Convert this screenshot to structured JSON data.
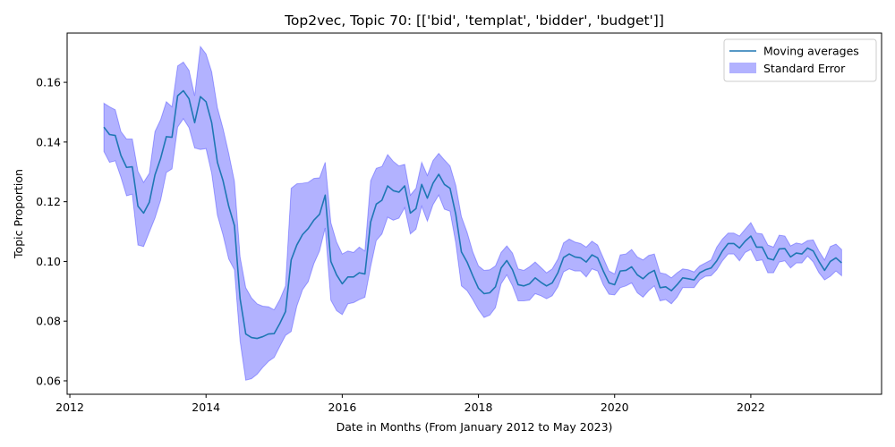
{
  "chart_data": {
    "type": "line",
    "title": "Top2vec, Topic 70: [['bid', 'templat', 'bidder', 'budget']]",
    "xlabel": "Date in Months (From January 2012 to May 2023)",
    "ylabel": "Topic Proportion",
    "xlim": [
      2011.96,
      2023.92
    ],
    "ylim": [
      0.0555,
      0.1765
    ],
    "grid": false,
    "legend_position": "upper-right",
    "x_ticks": [
      {
        "value": 2012,
        "label": "2012"
      },
      {
        "value": 2014,
        "label": "2014"
      },
      {
        "value": 2016,
        "label": "2016"
      },
      {
        "value": 2018,
        "label": "2018"
      },
      {
        "value": 2020,
        "label": "2020"
      },
      {
        "value": 2022,
        "label": "2022"
      }
    ],
    "y_ticks": [
      {
        "value": 0.06,
        "label": "0.06"
      },
      {
        "value": 0.08,
        "label": "0.08"
      },
      {
        "value": 0.1,
        "label": "0.10"
      },
      {
        "value": 0.12,
        "label": "0.12"
      },
      {
        "value": 0.14,
        "label": "0.14"
      },
      {
        "value": 0.16,
        "label": "0.16"
      }
    ],
    "series": [
      {
        "name": "Moving averages",
        "color": "#1f77b4",
        "x": [
          2012.5,
          2012.583,
          2012.667,
          2012.75,
          2012.833,
          2012.917,
          2013.0,
          2013.083,
          2013.167,
          2013.25,
          2013.333,
          2013.417,
          2013.5,
          2013.583,
          2013.667,
          2013.75,
          2013.833,
          2013.917,
          2014.0,
          2014.083,
          2014.167,
          2014.25,
          2014.333,
          2014.417,
          2014.5,
          2014.583,
          2014.667,
          2014.75,
          2014.833,
          2014.917,
          2015.0,
          2015.083,
          2015.167,
          2015.25,
          2015.333,
          2015.417,
          2015.5,
          2015.583,
          2015.667,
          2015.75,
          2015.833,
          2015.917,
          2016.0,
          2016.083,
          2016.167,
          2016.25,
          2016.333,
          2016.417,
          2016.5,
          2016.583,
          2016.667,
          2016.75,
          2016.833,
          2016.917,
          2017.0,
          2017.083,
          2017.167,
          2017.25,
          2017.333,
          2017.417,
          2017.5,
          2017.583,
          2017.667,
          2017.75,
          2017.833,
          2017.917,
          2018.0,
          2018.083,
          2018.167,
          2018.25,
          2018.333,
          2018.417,
          2018.5,
          2018.583,
          2018.667,
          2018.75,
          2018.833,
          2018.917,
          2019.0,
          2019.083,
          2019.167,
          2019.25,
          2019.333,
          2019.417,
          2019.5,
          2019.583,
          2019.667,
          2019.75,
          2019.833,
          2019.917,
          2020.0,
          2020.083,
          2020.167,
          2020.25,
          2020.333,
          2020.417,
          2020.5,
          2020.583,
          2020.667,
          2020.75,
          2020.833,
          2020.917,
          2021.0,
          2021.083,
          2021.167,
          2021.25,
          2021.333,
          2021.417,
          2021.5,
          2021.583,
          2021.667,
          2021.75,
          2021.833,
          2021.917,
          2022.0,
          2022.083,
          2022.167,
          2022.25,
          2022.333,
          2022.417,
          2022.5,
          2022.583,
          2022.667,
          2022.75,
          2022.833,
          2022.917,
          2023.0,
          2023.083,
          2023.167,
          2023.25,
          2023.333
        ],
        "values": [
          0.145,
          0.1425,
          0.1422,
          0.1355,
          0.1315,
          0.1317,
          0.1185,
          0.1162,
          0.1198,
          0.129,
          0.1345,
          0.1418,
          0.1416,
          0.1555,
          0.1572,
          0.1545,
          0.1465,
          0.1552,
          0.1535,
          0.1465,
          0.1332,
          0.127,
          0.1185,
          0.112,
          0.0875,
          0.0757,
          0.0745,
          0.0742,
          0.0748,
          0.0757,
          0.0758,
          0.0792,
          0.0832,
          0.1005,
          0.1055,
          0.109,
          0.111,
          0.1138,
          0.1158,
          0.1222,
          0.1,
          0.0955,
          0.0925,
          0.0948,
          0.0948,
          0.0962,
          0.0958,
          0.1132,
          0.1192,
          0.1205,
          0.1253,
          0.1237,
          0.1232,
          0.1253,
          0.1162,
          0.1177,
          0.1258,
          0.1212,
          0.1262,
          0.1292,
          0.1258,
          0.1245,
          0.1158,
          0.1032,
          0.0998,
          0.0952,
          0.091,
          0.0892,
          0.0895,
          0.0915,
          0.0978,
          0.1003,
          0.0972,
          0.0922,
          0.0918,
          0.0925,
          0.0945,
          0.093,
          0.0918,
          0.0928,
          0.0962,
          0.1013,
          0.1025,
          0.1015,
          0.1012,
          0.0998,
          0.1022,
          0.1012,
          0.0968,
          0.0928,
          0.0922,
          0.0968,
          0.097,
          0.0982,
          0.0955,
          0.0942,
          0.096,
          0.097,
          0.0912,
          0.0915,
          0.0902,
          0.0922,
          0.0945,
          0.0942,
          0.0938,
          0.0962,
          0.0972,
          0.0978,
          0.1002,
          0.1035,
          0.106,
          0.106,
          0.1045,
          0.1068,
          0.1085,
          0.1048,
          0.1048,
          0.101,
          0.1005,
          0.1042,
          0.1043,
          0.1015,
          0.1028,
          0.1025,
          0.1045,
          0.1035,
          0.1,
          0.097,
          0.1,
          0.1012,
          0.0995
        ]
      }
    ],
    "band": {
      "name": "Standard Error",
      "color": "#0000ff",
      "alpha": 0.3,
      "upper": [
        0.153,
        0.1518,
        0.1508,
        0.1435,
        0.141,
        0.141,
        0.1302,
        0.1265,
        0.1295,
        0.1435,
        0.1475,
        0.1535,
        0.1518,
        0.1655,
        0.1668,
        0.164,
        0.1555,
        0.172,
        0.1695,
        0.1635,
        0.1515,
        0.1445,
        0.1362,
        0.1268,
        0.1015,
        0.0912,
        0.0878,
        0.0858,
        0.085,
        0.0848,
        0.0838,
        0.0872,
        0.0918,
        0.1245,
        0.126,
        0.1262,
        0.1265,
        0.1278,
        0.128,
        0.1332,
        0.113,
        0.1065,
        0.1025,
        0.1035,
        0.103,
        0.1048,
        0.1035,
        0.127,
        0.1312,
        0.1318,
        0.1358,
        0.1335,
        0.132,
        0.1325,
        0.1222,
        0.1245,
        0.1332,
        0.1288,
        0.1338,
        0.1362,
        0.134,
        0.132,
        0.1255,
        0.115,
        0.1098,
        0.1032,
        0.0985,
        0.097,
        0.0972,
        0.0985,
        0.103,
        0.1052,
        0.1028,
        0.0975,
        0.097,
        0.0982,
        0.0998,
        0.098,
        0.0962,
        0.0975,
        0.1008,
        0.1062,
        0.1075,
        0.1065,
        0.106,
        0.1048,
        0.1068,
        0.1055,
        0.1012,
        0.0968,
        0.0958,
        0.1022,
        0.1025,
        0.104,
        0.1015,
        0.1005,
        0.102,
        0.1025,
        0.0962,
        0.0958,
        0.0945,
        0.0962,
        0.0975,
        0.0972,
        0.0965,
        0.0985,
        0.0995,
        0.1005,
        0.1048,
        0.1075,
        0.1095,
        0.1095,
        0.1085,
        0.1108,
        0.113,
        0.1095,
        0.1092,
        0.1055,
        0.1048,
        0.1088,
        0.1085,
        0.1052,
        0.1062,
        0.1058,
        0.107,
        0.1072,
        0.1035,
        0.1005,
        0.105,
        0.1058,
        0.104
      ],
      "lower": [
        0.1368,
        0.1332,
        0.1337,
        0.1282,
        0.122,
        0.1225,
        0.1055,
        0.105,
        0.1098,
        0.1145,
        0.1205,
        0.1298,
        0.131,
        0.145,
        0.1478,
        0.1448,
        0.138,
        0.1375,
        0.1378,
        0.1295,
        0.1155,
        0.1088,
        0.1008,
        0.0972,
        0.0733,
        0.0602,
        0.0607,
        0.0622,
        0.0645,
        0.0665,
        0.0678,
        0.0715,
        0.0752,
        0.0765,
        0.085,
        0.0905,
        0.0932,
        0.0992,
        0.1035,
        0.1112,
        0.087,
        0.0835,
        0.0822,
        0.0858,
        0.0862,
        0.0872,
        0.088,
        0.0982,
        0.107,
        0.1092,
        0.1148,
        0.1138,
        0.1145,
        0.118,
        0.1092,
        0.1108,
        0.1185,
        0.1135,
        0.119,
        0.1222,
        0.1175,
        0.1168,
        0.1062,
        0.0918,
        0.0902,
        0.0872,
        0.0838,
        0.0812,
        0.082,
        0.0845,
        0.0925,
        0.0955,
        0.0918,
        0.0868,
        0.0868,
        0.087,
        0.0892,
        0.0885,
        0.0875,
        0.0885,
        0.0915,
        0.0965,
        0.0975,
        0.0968,
        0.0968,
        0.0948,
        0.0975,
        0.0968,
        0.0922,
        0.089,
        0.0888,
        0.0912,
        0.0918,
        0.0928,
        0.0895,
        0.088,
        0.0902,
        0.0918,
        0.0868,
        0.0872,
        0.0858,
        0.088,
        0.0912,
        0.0912,
        0.0912,
        0.0938,
        0.095,
        0.0952,
        0.0972,
        0.1002,
        0.1025,
        0.1025,
        0.1002,
        0.103,
        0.104,
        0.1002,
        0.1005,
        0.0962,
        0.0962,
        0.0998,
        0.1002,
        0.0978,
        0.0995,
        0.0995,
        0.1018,
        0.0998,
        0.0962,
        0.0938,
        0.095,
        0.0968,
        0.0952
      ]
    }
  }
}
